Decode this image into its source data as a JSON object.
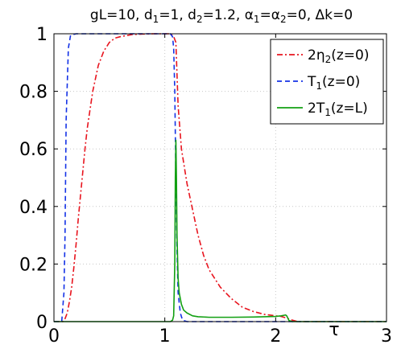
{
  "chart_data": {
    "type": "line",
    "title_parts": [
      {
        "t": "gL=10, d"
      },
      {
        "t": "1",
        "sub": true
      },
      {
        "t": "=1, d"
      },
      {
        "t": "2",
        "sub": true
      },
      {
        "t": "=1.2, α"
      },
      {
        "t": "1",
        "sub": true
      },
      {
        "t": "=α"
      },
      {
        "t": "2",
        "sub": true
      },
      {
        "t": "=0, Δk=0"
      }
    ],
    "xlabel": "τ",
    "ylabel": "",
    "xlim": [
      0,
      3
    ],
    "ylim": [
      0,
      1
    ],
    "xticks": [
      0,
      1,
      2,
      3
    ],
    "xtick_labels": [
      "0",
      "1",
      "2",
      "3"
    ],
    "yticks": [
      0,
      0.2,
      0.4,
      0.6,
      0.8,
      1
    ],
    "ytick_labels": [
      "0",
      "0.2",
      "0.4",
      "0.6",
      "0.8",
      "1"
    ],
    "grid": true,
    "legend_position": "top-right",
    "series": [
      {
        "name": "2η2(z=0)",
        "legend_parts": [
          {
            "t": "2η"
          },
          {
            "t": "2",
            "sub": true
          },
          {
            "t": "(z=0)"
          }
        ],
        "color": "#e8141e",
        "dash": "dashdot",
        "x": [
          0,
          0.08,
          0.1,
          0.12,
          0.14,
          0.16,
          0.18,
          0.2,
          0.22,
          0.25,
          0.28,
          0.3,
          0.35,
          0.4,
          0.45,
          0.5,
          0.55,
          0.6,
          0.7,
          0.8,
          0.9,
          1.0,
          1.05,
          1.08,
          1.1,
          1.12,
          1.15,
          1.2,
          1.25,
          1.3,
          1.35,
          1.4,
          1.5,
          1.6,
          1.7,
          1.8,
          1.9,
          2.0,
          2.05,
          2.1,
          2.15,
          2.2,
          3.0
        ],
        "y": [
          0,
          0,
          0.01,
          0.03,
          0.07,
          0.12,
          0.19,
          0.27,
          0.36,
          0.48,
          0.6,
          0.67,
          0.8,
          0.89,
          0.94,
          0.97,
          0.985,
          0.99,
          0.997,
          0.999,
          1.0,
          1.0,
          1.0,
          0.99,
          0.97,
          0.75,
          0.6,
          0.48,
          0.39,
          0.3,
          0.23,
          0.18,
          0.12,
          0.08,
          0.05,
          0.035,
          0.025,
          0.02,
          0.018,
          0.012,
          0.005,
          0.0,
          0.0
        ]
      },
      {
        "name": "T1(z=0)",
        "legend_parts": [
          {
            "t": "T"
          },
          {
            "t": "1",
            "sub": true
          },
          {
            "t": "(z=0)"
          }
        ],
        "color": "#1432e6",
        "dash": "dashed",
        "x": [
          0,
          0.07,
          0.09,
          0.1,
          0.11,
          0.13,
          0.15,
          0.2,
          0.5,
          1.0,
          1.05,
          1.07,
          1.08,
          1.09,
          1.1,
          1.11,
          1.12,
          1.14,
          1.16,
          1.2,
          3.0
        ],
        "y": [
          0,
          0,
          0.1,
          0.3,
          0.7,
          0.95,
          0.995,
          1.0,
          1.0,
          1.0,
          1.0,
          0.99,
          0.95,
          0.8,
          0.5,
          0.25,
          0.1,
          0.03,
          0.005,
          0,
          0
        ]
      },
      {
        "name": "2T1(z=L)",
        "legend_parts": [
          {
            "t": "2T"
          },
          {
            "t": "1",
            "sub": true
          },
          {
            "t": "(z=L)"
          }
        ],
        "color": "#12a012",
        "dash": "solid",
        "x": [
          0,
          1.05,
          1.07,
          1.08,
          1.09,
          1.095,
          1.1,
          1.105,
          1.11,
          1.12,
          1.13,
          1.15,
          1.17,
          1.2,
          1.25,
          1.3,
          1.4,
          1.6,
          1.8,
          2.0,
          2.05,
          2.09,
          2.1,
          2.11,
          2.12,
          2.15,
          3.0
        ],
        "y": [
          0,
          0,
          0.005,
          0.02,
          0.2,
          0.5,
          0.63,
          0.5,
          0.3,
          0.15,
          0.1,
          0.06,
          0.04,
          0.03,
          0.02,
          0.017,
          0.015,
          0.015,
          0.016,
          0.018,
          0.02,
          0.023,
          0.02,
          0.012,
          0.004,
          0.0,
          0.0
        ]
      }
    ]
  }
}
